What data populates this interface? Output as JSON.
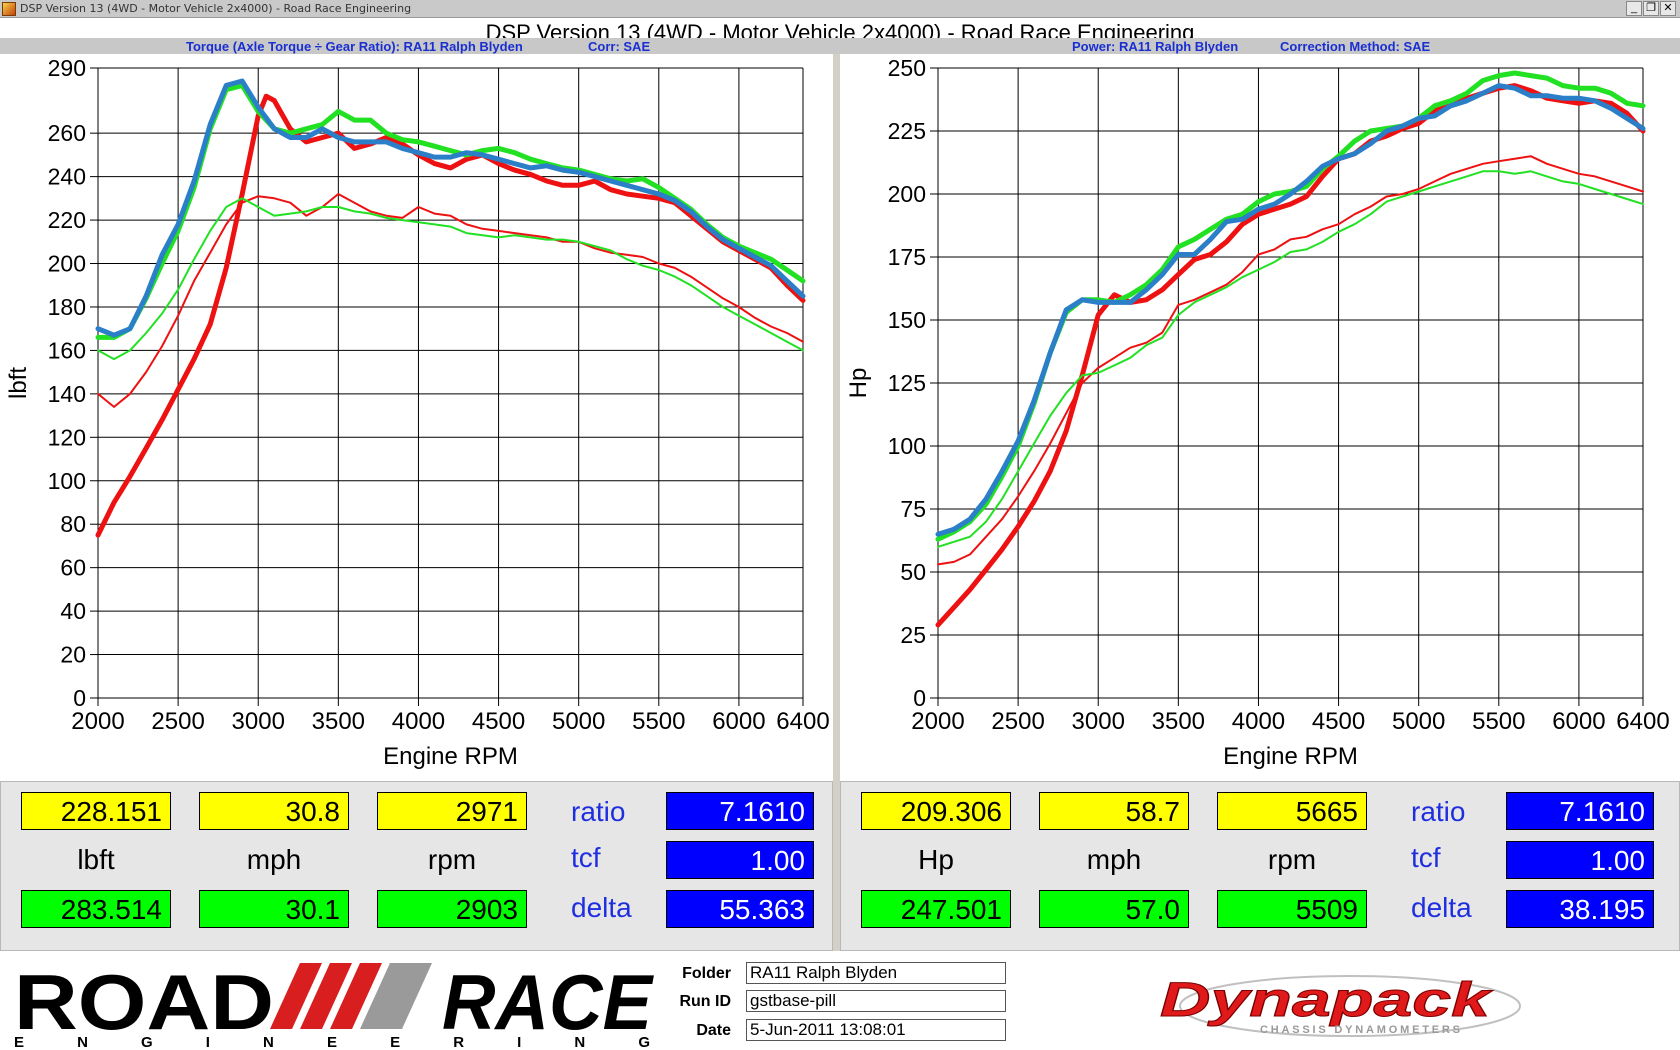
{
  "window": {
    "title": "DSP Version 13 (4WD - Motor Vehicle 2x4000) - Road Race Engineering",
    "minimize_glyph": "_",
    "maximize_glyph": "❐",
    "close_glyph": "✕"
  },
  "header": {
    "main_title": "DSP Version 13 (4WD - Motor Vehicle 2x4000) - Road Race Engineering",
    "left_sub": "Torque (Axle Torque ÷ Gear Ratio): RA11 Ralph Blyden",
    "left_corr": "Corr: SAE",
    "right_sub": "Power: RA11 Ralph Blyden",
    "right_corr": "Correction Method: SAE"
  },
  "colors": {
    "run_red": "#ee1111",
    "run_green": "#22e022",
    "run_blue": "#2a7fc8",
    "accent_text": "#1a2fd1"
  },
  "chart_data": [
    {
      "type": "line",
      "xlabel": "Engine RPM",
      "ylabel": "lbft",
      "xlim": [
        2000,
        6400
      ],
      "ylim": [
        0,
        290
      ],
      "xticks": [
        2000,
        2500,
        3000,
        3500,
        4000,
        4500,
        5000,
        5500,
        6000,
        6400
      ],
      "yticks": [
        0,
        20,
        40,
        60,
        80,
        100,
        120,
        140,
        160,
        180,
        200,
        220,
        240,
        260,
        290
      ],
      "grid": true,
      "series": [
        {
          "color": "red",
          "width": 5,
          "x": [
            2000,
            2100,
            2200,
            2300,
            2400,
            2500,
            2600,
            2700,
            2800,
            2900,
            3000,
            3050,
            3100,
            3200,
            3300,
            3400,
            3500,
            3600,
            3700,
            3800,
            3900,
            4000,
            4100,
            4200,
            4300,
            4400,
            4500,
            4600,
            4700,
            4800,
            4900,
            5000,
            5100,
            5200,
            5300,
            5400,
            5500,
            5600,
            5700,
            5800,
            5900,
            6000,
            6100,
            6200,
            6300,
            6400
          ],
          "y": [
            75,
            90,
            102,
            115,
            128,
            142,
            156,
            172,
            198,
            232,
            268,
            277,
            275,
            262,
            256,
            258,
            260,
            253,
            255,
            258,
            255,
            250,
            246,
            244,
            248,
            250,
            246,
            243,
            241,
            238,
            236,
            236,
            238,
            234,
            232,
            231,
            230,
            228,
            222,
            216,
            210,
            206,
            202,
            198,
            190,
            183
          ]
        },
        {
          "color": "red",
          "width": 2,
          "x": [
            2000,
            2100,
            2200,
            2300,
            2400,
            2500,
            2600,
            2700,
            2800,
            2900,
            3000,
            3100,
            3200,
            3300,
            3400,
            3500,
            3600,
            3700,
            3800,
            3900,
            4000,
            4100,
            4200,
            4300,
            4400,
            4500,
            4600,
            4700,
            4800,
            4900,
            5000,
            5100,
            5200,
            5300,
            5400,
            5500,
            5600,
            5700,
            5800,
            5900,
            6000,
            6100,
            6200,
            6300,
            6400
          ],
          "y": [
            140,
            134,
            140,
            150,
            162,
            176,
            192,
            205,
            218,
            228,
            231,
            230,
            228,
            222,
            226,
            232,
            228,
            224,
            222,
            221,
            226,
            223,
            222,
            218,
            216,
            215,
            214,
            213,
            212,
            210,
            210,
            207,
            205,
            204,
            203,
            200,
            198,
            194,
            189,
            184,
            180,
            175,
            171,
            168,
            164
          ]
        },
        {
          "color": "green",
          "width": 5,
          "x": [
            2000,
            2100,
            2200,
            2300,
            2400,
            2500,
            2600,
            2700,
            2800,
            2900,
            3000,
            3100,
            3200,
            3300,
            3400,
            3500,
            3600,
            3700,
            3800,
            3900,
            4000,
            4100,
            4200,
            4300,
            4400,
            4500,
            4600,
            4700,
            4800,
            4900,
            5000,
            5100,
            5200,
            5300,
            5400,
            5500,
            5600,
            5700,
            5800,
            5900,
            6000,
            6100,
            6200,
            6300,
            6400
          ],
          "y": [
            166,
            166,
            170,
            184,
            200,
            215,
            235,
            262,
            280,
            282,
            270,
            262,
            260,
            262,
            264,
            270,
            266,
            266,
            260,
            257,
            256,
            254,
            252,
            250,
            252,
            253,
            251,
            248,
            246,
            244,
            243,
            241,
            239,
            238,
            239,
            235,
            230,
            225,
            218,
            212,
            208,
            205,
            202,
            197,
            192
          ]
        },
        {
          "color": "green",
          "width": 2,
          "x": [
            2000,
            2100,
            2200,
            2300,
            2400,
            2500,
            2600,
            2700,
            2800,
            2900,
            3000,
            3100,
            3200,
            3300,
            3400,
            3500,
            3600,
            3700,
            3800,
            3900,
            4000,
            4100,
            4200,
            4300,
            4400,
            4500,
            4600,
            4700,
            4800,
            4900,
            5000,
            5100,
            5200,
            5300,
            5400,
            5500,
            5600,
            5700,
            5800,
            5900,
            6000,
            6100,
            6200,
            6300,
            6400
          ],
          "y": [
            160,
            156,
            160,
            168,
            177,
            188,
            202,
            215,
            226,
            230,
            226,
            222,
            223,
            224,
            226,
            226,
            224,
            223,
            221,
            220,
            219,
            218,
            217,
            214,
            213,
            212,
            213,
            212,
            211,
            211,
            210,
            208,
            206,
            202,
            199,
            197,
            194,
            190,
            185,
            180,
            176,
            172,
            168,
            164,
            160
          ]
        },
        {
          "color": "blue",
          "width": 5,
          "x": [
            2000,
            2100,
            2200,
            2300,
            2400,
            2500,
            2600,
            2700,
            2800,
            2900,
            3000,
            3100,
            3200,
            3300,
            3400,
            3500,
            3600,
            3700,
            3800,
            3900,
            4000,
            4100,
            4200,
            4300,
            4400,
            4500,
            4600,
            4700,
            4800,
            4900,
            5000,
            5100,
            5200,
            5300,
            5400,
            5500,
            5600,
            5700,
            5800,
            5900,
            6000,
            6100,
            6200,
            6300,
            6400
          ],
          "y": [
            170,
            167,
            170,
            185,
            204,
            218,
            238,
            264,
            282,
            284,
            272,
            262,
            258,
            258,
            262,
            258,
            256,
            256,
            256,
            253,
            251,
            249,
            249,
            251,
            250,
            248,
            246,
            244,
            245,
            243,
            242,
            240,
            238,
            236,
            234,
            232,
            229,
            224,
            217,
            211,
            207,
            203,
            199,
            192,
            185
          ]
        }
      ]
    },
    {
      "type": "line",
      "xlabel": "Engine RPM",
      "ylabel": "Hp",
      "xlim": [
        2000,
        6400
      ],
      "ylim": [
        0,
        250
      ],
      "xticks": [
        2000,
        2500,
        3000,
        3500,
        4000,
        4500,
        5000,
        5500,
        6000,
        6400
      ],
      "yticks": [
        0,
        25,
        50,
        75,
        100,
        125,
        150,
        175,
        200,
        225,
        250
      ],
      "grid": true,
      "series": [
        {
          "color": "red",
          "width": 5,
          "x": [
            2000,
            2100,
            2200,
            2300,
            2400,
            2500,
            2600,
            2700,
            2800,
            2900,
            3000,
            3100,
            3200,
            3300,
            3400,
            3500,
            3600,
            3700,
            3800,
            3900,
            4000,
            4100,
            4200,
            4300,
            4400,
            4500,
            4600,
            4700,
            4800,
            4900,
            5000,
            5100,
            5200,
            5300,
            5400,
            5500,
            5600,
            5700,
            5800,
            5900,
            6000,
            6100,
            6200,
            6300,
            6400
          ],
          "y": [
            29,
            36,
            43,
            51,
            59,
            68,
            78,
            90,
            106,
            128,
            152,
            160,
            157,
            158,
            162,
            168,
            174,
            176,
            181,
            188,
            192,
            194,
            196,
            199,
            207,
            214,
            216,
            221,
            223,
            226,
            228,
            233,
            237,
            238,
            240,
            242,
            243,
            241,
            238,
            237,
            236,
            237,
            236,
            232,
            225
          ]
        },
        {
          "color": "red",
          "width": 2,
          "x": [
            2000,
            2100,
            2200,
            2300,
            2400,
            2500,
            2600,
            2700,
            2800,
            2900,
            3000,
            3100,
            3200,
            3300,
            3400,
            3500,
            3600,
            3700,
            3800,
            3900,
            4000,
            4100,
            4200,
            4300,
            4400,
            4500,
            4600,
            4700,
            4800,
            4900,
            5000,
            5100,
            5200,
            5300,
            5400,
            5500,
            5600,
            5700,
            5800,
            5900,
            6000,
            6100,
            6200,
            6300,
            6400
          ],
          "y": [
            53,
            54,
            57,
            64,
            71,
            80,
            90,
            101,
            113,
            125,
            131,
            135,
            139,
            141,
            145,
            156,
            158,
            161,
            164,
            169,
            176,
            178,
            182,
            183,
            186,
            188,
            192,
            195,
            199,
            200,
            202,
            205,
            208,
            210,
            212,
            213,
            214,
            215,
            212,
            210,
            208,
            207,
            205,
            203,
            201
          ]
        },
        {
          "color": "green",
          "width": 5,
          "x": [
            2000,
            2100,
            2200,
            2300,
            2400,
            2500,
            2600,
            2700,
            2800,
            2900,
            3000,
            3100,
            3200,
            3300,
            3400,
            3500,
            3600,
            3700,
            3800,
            3900,
            4000,
            4100,
            4200,
            4300,
            4400,
            4500,
            4600,
            4700,
            4800,
            4900,
            5000,
            5100,
            5200,
            5300,
            5400,
            5500,
            5600,
            5700,
            5800,
            5900,
            6000,
            6100,
            6200,
            6300,
            6400
          ],
          "y": [
            63,
            66,
            70,
            77,
            88,
            100,
            117,
            137,
            153,
            158,
            158,
            157,
            160,
            164,
            170,
            179,
            182,
            186,
            190,
            192,
            197,
            200,
            201,
            203,
            210,
            215,
            221,
            225,
            226,
            227,
            230,
            235,
            237,
            240,
            245,
            247,
            248,
            247,
            246,
            243,
            242,
            242,
            240,
            236,
            235
          ]
        },
        {
          "color": "green",
          "width": 2,
          "x": [
            2000,
            2100,
            2200,
            2300,
            2400,
            2500,
            2600,
            2700,
            2800,
            2900,
            3000,
            3100,
            3200,
            3300,
            3400,
            3500,
            3600,
            3700,
            3800,
            3900,
            4000,
            4100,
            4200,
            4300,
            4400,
            4500,
            4600,
            4700,
            4800,
            4900,
            5000,
            5100,
            5200,
            5300,
            5400,
            5500,
            5600,
            5700,
            5800,
            5900,
            6000,
            6100,
            6200,
            6300,
            6400
          ],
          "y": [
            60,
            62,
            64,
            70,
            79,
            90,
            101,
            112,
            121,
            128,
            129,
            132,
            135,
            140,
            143,
            152,
            157,
            160,
            163,
            167,
            170,
            173,
            177,
            178,
            181,
            185,
            188,
            192,
            197,
            199,
            201,
            203,
            205,
            207,
            209,
            209,
            208,
            209,
            207,
            205,
            204,
            202,
            200,
            198,
            196
          ]
        },
        {
          "color": "blue",
          "width": 5,
          "x": [
            2000,
            2100,
            2200,
            2300,
            2400,
            2500,
            2600,
            2700,
            2800,
            2900,
            3000,
            3100,
            3200,
            3300,
            3400,
            3500,
            3600,
            3700,
            3800,
            3900,
            4000,
            4100,
            4200,
            4300,
            4400,
            4500,
            4600,
            4700,
            4800,
            4900,
            5000,
            5100,
            5200,
            5300,
            5400,
            5500,
            5600,
            5700,
            5800,
            5900,
            6000,
            6100,
            6200,
            6300,
            6400
          ],
          "y": [
            65,
            67,
            71,
            79,
            90,
            102,
            118,
            137,
            154,
            158,
            157,
            157,
            157,
            162,
            168,
            176,
            176,
            182,
            189,
            190,
            194,
            196,
            200,
            205,
            211,
            214,
            216,
            220,
            225,
            227,
            230,
            231,
            235,
            237,
            240,
            243,
            242,
            239,
            239,
            238,
            238,
            237,
            234,
            230,
            226
          ]
        }
      ]
    }
  ],
  "readout_left": {
    "row1": [
      "228.151",
      "30.8",
      "2971"
    ],
    "units": [
      "lbft",
      "mph",
      "rpm"
    ],
    "row2": [
      "283.514",
      "30.1",
      "2903"
    ],
    "params": [
      "ratio",
      "tcf",
      "delta"
    ],
    "param_values": [
      "7.1610",
      "1.00",
      "55.363"
    ]
  },
  "readout_right": {
    "row1": [
      "209.306",
      "58.7",
      "5665"
    ],
    "units": [
      "Hp",
      "mph",
      "rpm"
    ],
    "row2": [
      "247.501",
      "57.0",
      "5509"
    ],
    "params": [
      "ratio",
      "tcf",
      "delta"
    ],
    "param_values": [
      "7.1610",
      "1.00",
      "38.195"
    ]
  },
  "footer": {
    "logo_top": "ROAD",
    "logo_right": "RACE",
    "logo_bottom": "E N G I N E E R I N G",
    "folder_label": "Folder",
    "folder_value": "RA11 Ralph Blyden",
    "runid_label": "Run ID",
    "runid_value": "gstbase-pill",
    "date_label": "Date",
    "date_value": "5-Jun-2011 13:08:01",
    "brand_name": "Dynapack",
    "brand_tagline": "CHASSIS DYNAMOMETERS"
  }
}
